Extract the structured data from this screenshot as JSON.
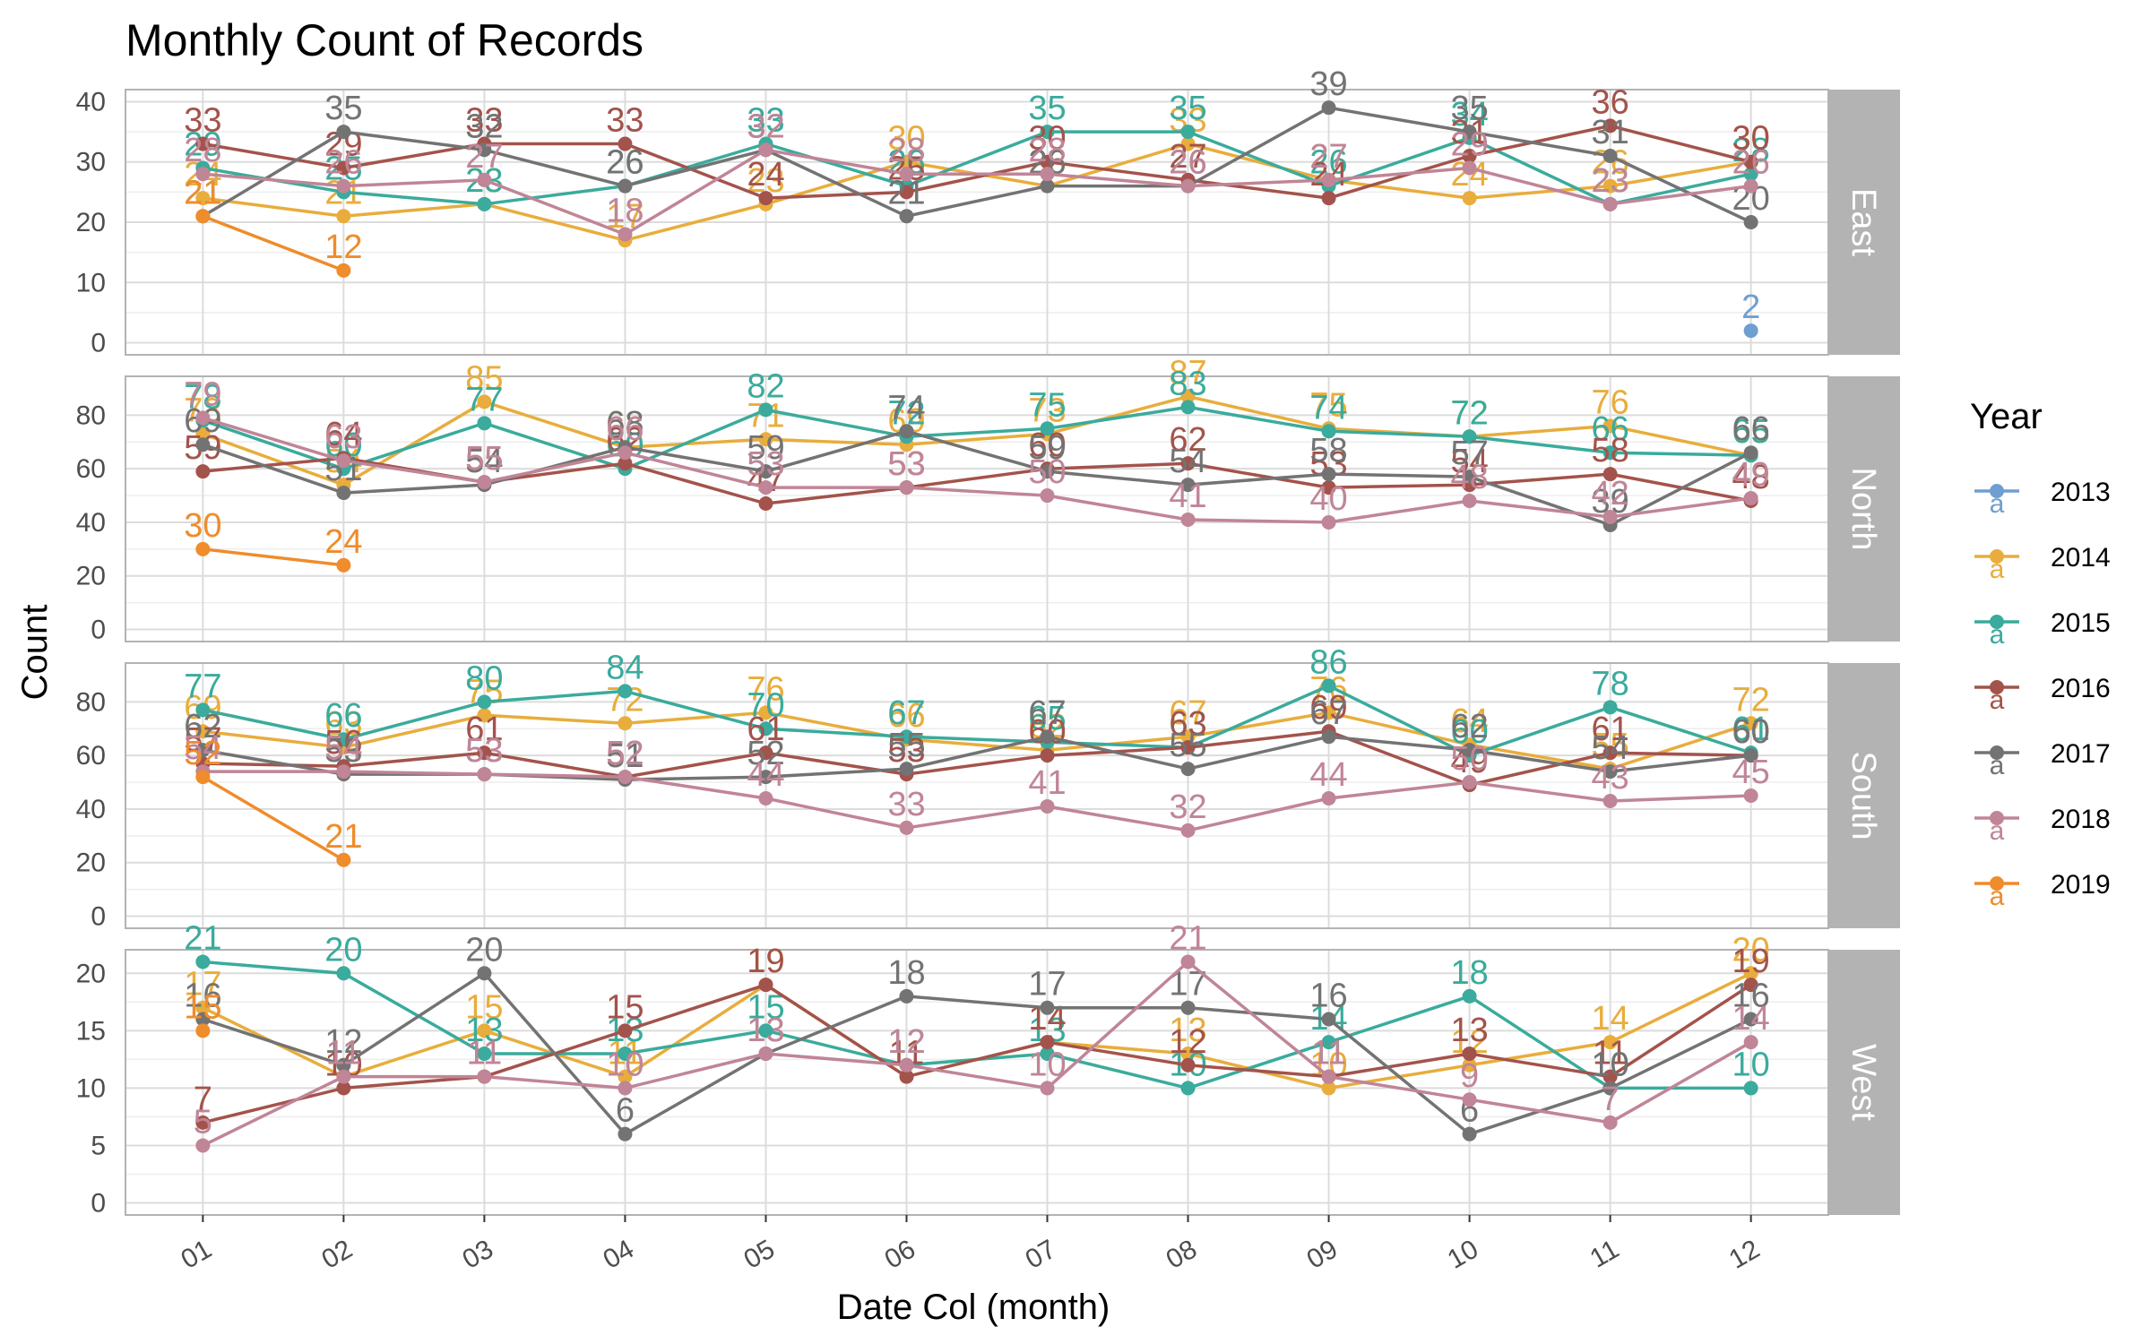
{
  "chart_data": {
    "type": "line",
    "title": "Monthly Count of Records",
    "xlabel": "Date Col (month)",
    "ylabel": "Count",
    "categories": [
      "01",
      "02",
      "03",
      "04",
      "05",
      "06",
      "07",
      "08",
      "09",
      "10",
      "11",
      "12"
    ],
    "grid": true,
    "legend": {
      "title": "Year",
      "position": "right",
      "entries": [
        "2013",
        "2014",
        "2015",
        "2016",
        "2017",
        "2018",
        "2019"
      ]
    },
    "colors": {
      "2013": "#6f9fd0",
      "2014": "#e8ad3c",
      "2015": "#3aab9c",
      "2016": "#a3534b",
      "2017": "#737373",
      "2018": "#c08597",
      "2019": "#ef8c2b"
    },
    "panels": [
      {
        "name": "East",
        "ylim": [
          0,
          40
        ],
        "yticks": [
          0,
          10,
          20,
          30,
          40
        ],
        "series": [
          {
            "name": "2013",
            "values": [
              null,
              null,
              null,
              null,
              null,
              null,
              null,
              null,
              null,
              null,
              null,
              2
            ]
          },
          {
            "name": "2014",
            "values": [
              24,
              21,
              23,
              17,
              23,
              30,
              26,
              33,
              27,
              24,
              26,
              30
            ]
          },
          {
            "name": "2015",
            "values": [
              29,
              25,
              23,
              26,
              33,
              26,
              35,
              35,
              26,
              34,
              23,
              28
            ]
          },
          {
            "name": "2016",
            "values": [
              33,
              29,
              33,
              33,
              24,
              25,
              30,
              27,
              24,
              31,
              36,
              30
            ]
          },
          {
            "name": "2017",
            "values": [
              21,
              35,
              32,
              26,
              32,
              21,
              26,
              26,
              39,
              35,
              31,
              20
            ]
          },
          {
            "name": "2018",
            "values": [
              28,
              26,
              27,
              18,
              32,
              28,
              28,
              26,
              27,
              29,
              23,
              26
            ]
          },
          {
            "name": "2019",
            "values": [
              21,
              12,
              null,
              null,
              null,
              null,
              null,
              null,
              null,
              null,
              null,
              null
            ]
          }
        ]
      },
      {
        "name": "North",
        "ylim": [
          0,
          90
        ],
        "yticks": [
          0,
          20,
          40,
          60,
          80
        ],
        "series": [
          {
            "name": "2013",
            "values": [
              null,
              null,
              null,
              null,
              null,
              null,
              null,
              null,
              null,
              null,
              null,
              null
            ]
          },
          {
            "name": "2014",
            "values": [
              73,
              54,
              85,
              68,
              71,
              69,
              73,
              87,
              75,
              72,
              76,
              65
            ]
          },
          {
            "name": "2015",
            "values": [
              78,
              60,
              77,
              60,
              82,
              72,
              75,
              83,
              74,
              72,
              66,
              65
            ]
          },
          {
            "name": "2016",
            "values": [
              59,
              64,
              55,
              62,
              47,
              53,
              60,
              62,
              53,
              54,
              58,
              48
            ]
          },
          {
            "name": "2017",
            "values": [
              69,
              51,
              54,
              68,
              59,
              74,
              59,
              54,
              58,
              57,
              39,
              66
            ]
          },
          {
            "name": "2018",
            "values": [
              79,
              63,
              55,
              66,
              53,
              53,
              50,
              41,
              40,
              48,
              42,
              49
            ]
          },
          {
            "name": "2019",
            "values": [
              30,
              24,
              null,
              null,
              null,
              null,
              null,
              null,
              null,
              null,
              null,
              null
            ]
          }
        ]
      },
      {
        "name": "South",
        "ylim": [
          0,
          90
        ],
        "yticks": [
          0,
          20,
          40,
          60,
          80
        ],
        "series": [
          {
            "name": "2013",
            "values": [
              null,
              null,
              null,
              null,
              null,
              null,
              null,
              null,
              null,
              null,
              null,
              null
            ]
          },
          {
            "name": "2014",
            "values": [
              69,
              63,
              75,
              72,
              76,
              66,
              62,
              67,
              76,
              64,
              55,
              72
            ]
          },
          {
            "name": "2015",
            "values": [
              77,
              66,
              80,
              84,
              70,
              67,
              65,
              63,
              86,
              60,
              78,
              61
            ]
          },
          {
            "name": "2016",
            "values": [
              57,
              56,
              61,
              52,
              61,
              53,
              60,
              63,
              69,
              49,
              61,
              60
            ]
          },
          {
            "name": "2017",
            "values": [
              62,
              53,
              53,
              51,
              52,
              55,
              67,
              55,
              67,
              62,
              54,
              60
            ]
          },
          {
            "name": "2018",
            "values": [
              54,
              54,
              53,
              52,
              44,
              33,
              41,
              32,
              44,
              50,
              43,
              45
            ]
          },
          {
            "name": "2019",
            "values": [
              52,
              21,
              null,
              null,
              null,
              null,
              null,
              null,
              null,
              null,
              null,
              null
            ]
          }
        ]
      },
      {
        "name": "West",
        "ylim": [
          0,
          21
        ],
        "yticks": [
          0,
          5,
          10,
          15,
          20
        ],
        "series": [
          {
            "name": "2013",
            "values": [
              null,
              null,
              null,
              null,
              null,
              null,
              null,
              null,
              null,
              null,
              null,
              null
            ]
          },
          {
            "name": "2014",
            "values": [
              17,
              11,
              15,
              11,
              19,
              11,
              14,
              13,
              10,
              12,
              14,
              20
            ]
          },
          {
            "name": "2015",
            "values": [
              21,
              20,
              13,
              13,
              15,
              12,
              13,
              10,
              14,
              18,
              10,
              10
            ]
          },
          {
            "name": "2016",
            "values": [
              7,
              10,
              11,
              15,
              19,
              11,
              14,
              12,
              11,
              13,
              11,
              19
            ]
          },
          {
            "name": "2017",
            "values": [
              16,
              12,
              20,
              6,
              13,
              18,
              17,
              17,
              16,
              6,
              10,
              16
            ]
          },
          {
            "name": "2018",
            "values": [
              5,
              11,
              11,
              10,
              13,
              12,
              10,
              21,
              11,
              9,
              7,
              14
            ]
          },
          {
            "name": "2019",
            "values": [
              15,
              null,
              null,
              null,
              null,
              null,
              null,
              null,
              null,
              null,
              null,
              null
            ]
          }
        ]
      }
    ]
  }
}
